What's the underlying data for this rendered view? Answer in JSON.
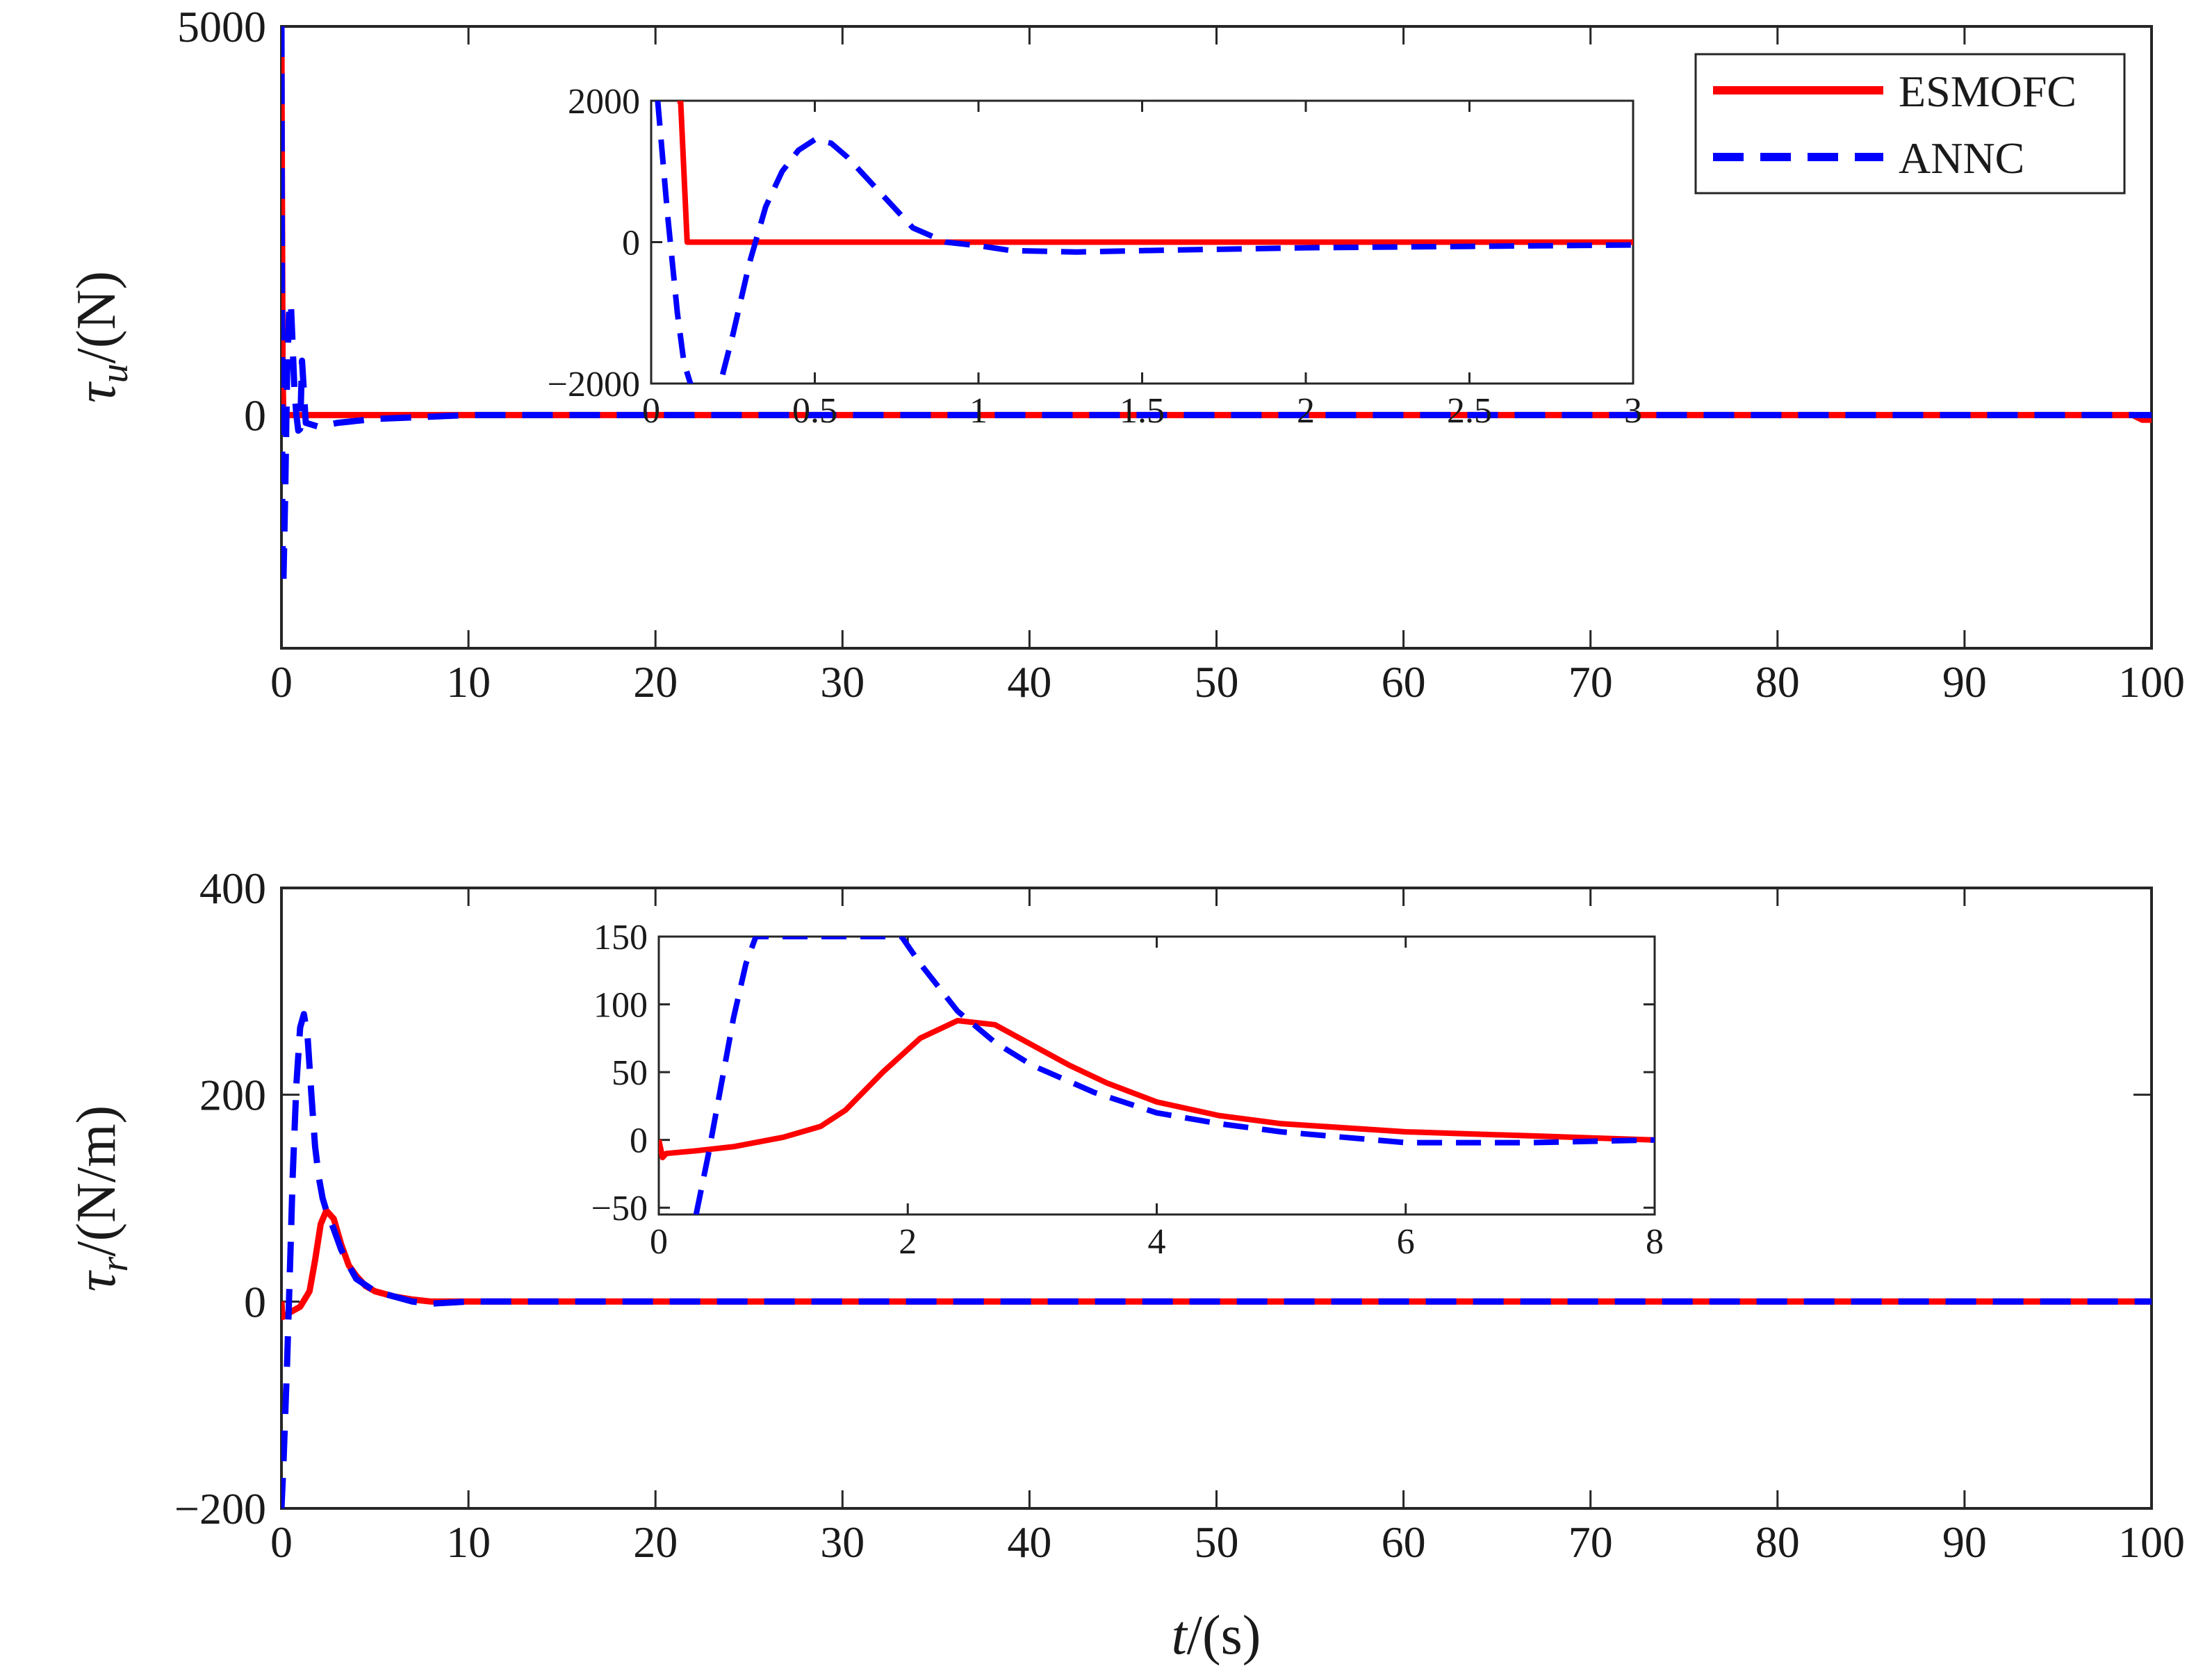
{
  "colors": {
    "esmofc": "#ff0000",
    "annc": "#0000ff",
    "axis": "#262626"
  },
  "legend": {
    "location": "top-right",
    "entries": [
      "ESMOFC",
      "ANNC"
    ]
  },
  "chart_data": [
    {
      "type": "line",
      "id": "top-main",
      "ylabel": {
        "symbol": "τ",
        "sub": "u",
        "unit": "/(N)"
      },
      "xlabel": "",
      "xlim": [
        0,
        100
      ],
      "ylim": [
        -3000,
        5000
      ],
      "xticks": [
        0,
        10,
        20,
        30,
        40,
        50,
        60,
        70,
        80,
        90,
        100
      ],
      "yticks": [
        0,
        5000
      ],
      "ytick_labels": [
        "0",
        "5000"
      ],
      "series": [
        {
          "name": "ESMOFC",
          "x": [
            0,
            0.02,
            0.04,
            0.06,
            0.1,
            0.5,
            2,
            10,
            50,
            99,
            99.5,
            100
          ],
          "y": [
            5000,
            3500,
            2000,
            600,
            0,
            0,
            0,
            0,
            0,
            0,
            -60,
            -60
          ]
        },
        {
          "name": "ANNC",
          "x": [
            0,
            0.05,
            0.1,
            0.2,
            0.3,
            0.4,
            0.5,
            0.6,
            0.7,
            0.8,
            0.9,
            1.0,
            1.1,
            1.3,
            2,
            3,
            5,
            10,
            50,
            100
          ],
          "y": [
            5000,
            -1500,
            -2200,
            -1000,
            500,
            1300,
            1450,
            900,
            300,
            0,
            -200,
            -180,
            700,
            -100,
            -150,
            -100,
            -50,
            0,
            0,
            0
          ]
        }
      ]
    },
    {
      "type": "line",
      "id": "top-inset",
      "xlim": [
        0,
        3
      ],
      "ylim": [
        -2000,
        2000
      ],
      "xticks": [
        0,
        0.5,
        1,
        1.5,
        2,
        2.5,
        3
      ],
      "yticks": [
        -2000,
        0,
        2000
      ],
      "ytick_labels": [
        "−2000",
        "0",
        "2000"
      ],
      "series": [
        {
          "name": "ESMOFC",
          "x": [
            0.08,
            0.09,
            0.1,
            0.11,
            3
          ],
          "y": [
            2000,
            2000,
            1000,
            0,
            0
          ]
        },
        {
          "name": "ANNC",
          "x": [
            0.02,
            0.05,
            0.08,
            0.1,
            0.12,
            0.15,
            0.2,
            0.25,
            0.3,
            0.35,
            0.4,
            0.45,
            0.5,
            0.55,
            0.6,
            0.7,
            0.8,
            0.9,
            1.0,
            1.1,
            1.3,
            1.5,
            2,
            2.5,
            3
          ],
          "y": [
            2000,
            400,
            -1000,
            -1700,
            -2000,
            -2300,
            -2200,
            -1300,
            -300,
            500,
            1000,
            1300,
            1450,
            1400,
            1200,
            700,
            200,
            0,
            -50,
            -120,
            -140,
            -120,
            -80,
            -60,
            -40
          ]
        }
      ]
    },
    {
      "type": "line",
      "id": "bottom-main",
      "ylabel": {
        "symbol": "τ",
        "sub": "r",
        "unit": "/(N/m)"
      },
      "xlabel": {
        "symbol": "t",
        "unit": "/(s)"
      },
      "xlim": [
        0,
        100
      ],
      "ylim": [
        -200,
        400
      ],
      "xticks": [
        0,
        10,
        20,
        30,
        40,
        50,
        60,
        70,
        80,
        90,
        100
      ],
      "yticks": [
        -200,
        0,
        200,
        400
      ],
      "ytick_labels": [
        "−200",
        "0",
        "200",
        "400"
      ],
      "series": [
        {
          "name": "ESMOFC",
          "x": [
            0,
            0.05,
            0.5,
            1.0,
            1.5,
            1.8,
            2.1,
            2.4,
            2.8,
            3.2,
            3.6,
            4.0,
            4.5,
            5,
            6,
            7,
            8,
            10,
            20,
            100
          ],
          "y": [
            0,
            -15,
            -10,
            -5,
            10,
            40,
            75,
            88,
            80,
            55,
            35,
            25,
            15,
            10,
            5,
            2,
            0,
            0,
            0,
            0
          ]
        },
        {
          "name": "ANNC",
          "x": [
            0,
            0.1,
            0.2,
            0.3,
            0.4,
            0.5,
            0.6,
            0.8,
            1.0,
            1.2,
            1.4,
            1.6,
            1.8,
            2.0,
            2.2,
            2.4,
            2.8,
            3.2,
            3.6,
            4.0,
            5,
            6,
            7,
            8,
            10,
            20,
            100
          ],
          "y": [
            -200,
            -160,
            -110,
            -60,
            0,
            60,
            120,
            210,
            265,
            278,
            255,
            200,
            150,
            120,
            100,
            88,
            70,
            50,
            35,
            22,
            10,
            5,
            0,
            -2,
            0,
            0,
            0
          ]
        }
      ]
    },
    {
      "type": "line",
      "id": "bottom-inset",
      "xlim": [
        0,
        8
      ],
      "ylim": [
        -55,
        150
      ],
      "xticks": [
        0,
        2,
        4,
        6,
        8
      ],
      "yticks": [
        -50,
        0,
        50,
        100,
        150
      ],
      "ytick_labels": [
        "−50",
        "0",
        "50",
        "100",
        "150"
      ],
      "series": [
        {
          "name": "ESMOFC",
          "x": [
            0,
            0.03,
            0.06,
            0.3,
            0.6,
            1.0,
            1.3,
            1.5,
            1.8,
            2.1,
            2.4,
            2.7,
            3.0,
            3.3,
            3.6,
            4.0,
            4.5,
            5,
            6,
            7,
            8
          ],
          "y": [
            0,
            -13,
            -10,
            -8,
            -5,
            2,
            10,
            22,
            50,
            75,
            88,
            85,
            70,
            55,
            42,
            28,
            18,
            12,
            6,
            3,
            0
          ]
        },
        {
          "name": "ANNC",
          "x": [
            0.3,
            0.4,
            0.5,
            0.6,
            0.7,
            0.78,
            1.95,
            2.1,
            2.4,
            2.7,
            3.0,
            3.5,
            4.0,
            4.5,
            5,
            6,
            7,
            8
          ],
          "y": [
            -55,
            -10,
            40,
            90,
            130,
            150,
            150,
            130,
            95,
            72,
            55,
            35,
            20,
            12,
            6,
            -2,
            -2,
            0
          ]
        }
      ]
    }
  ]
}
